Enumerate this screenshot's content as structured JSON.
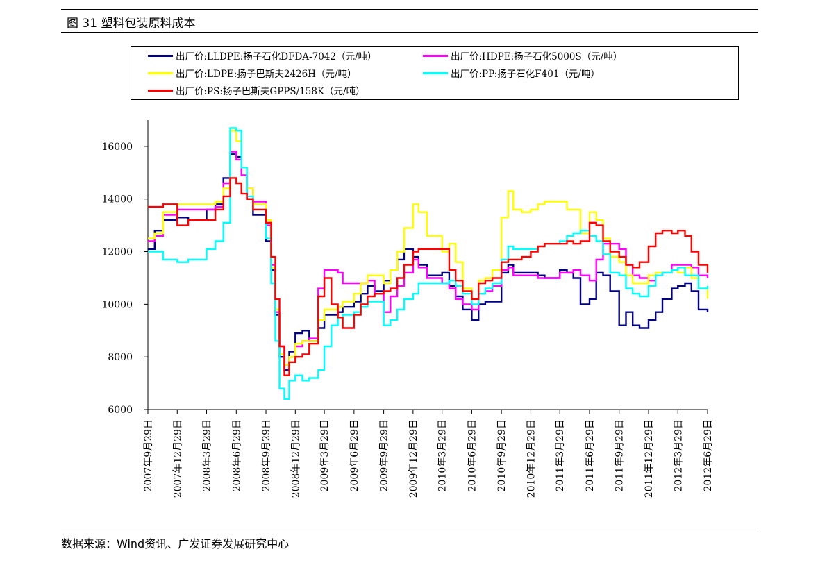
{
  "figure": {
    "title": "图 31 塑料包装原料成本",
    "source": "数据来源：Wind资讯、广发证券发展研究中心"
  },
  "chart_data": {
    "type": "line",
    "title": "",
    "xlabel": "",
    "ylabel": "",
    "ylim": [
      6000,
      17000
    ],
    "yticks": [
      "6000",
      "8000",
      "10000",
      "12000",
      "14000",
      "16000"
    ],
    "xticks": [
      "2007年9月29日",
      "2007年12月29日",
      "2008年3月29日",
      "2008年6月29日",
      "2008年9月29日",
      "2008年12月29日",
      "2009年3月29日",
      "2009年6月29日",
      "2009年9月29日",
      "2009年12月29日",
      "2010年3月29日",
      "2010年6月29日",
      "2010年9月29日",
      "2010年12月29日",
      "2011年3月29日",
      "2011年6月29日",
      "2011年9月29日",
      "2011年12月29日",
      "2012年3月29日",
      "2012年6月29日"
    ],
    "grid": false,
    "legend_position": "top",
    "series": [
      {
        "name": "出厂价:LLDPE:扬子石化DFDA-7042（元/吨）",
        "color": "#000080",
        "x": [
          "2007-09-29",
          "2007-10-20",
          "2007-11-15",
          "2007-12-29",
          "2008-02-01",
          "2008-03-29",
          "2008-04-25",
          "2008-05-20",
          "2008-06-10",
          "2008-06-29",
          "2008-07-15",
          "2008-08-01",
          "2008-08-20",
          "2008-09-29",
          "2008-10-15",
          "2008-10-28",
          "2008-11-10",
          "2008-11-25",
          "2008-12-10",
          "2008-12-29",
          "2009-01-20",
          "2009-02-10",
          "2009-03-10",
          "2009-03-29",
          "2009-04-20",
          "2009-05-10",
          "2009-05-25",
          "2009-06-29",
          "2009-07-20",
          "2009-08-10",
          "2009-09-01",
          "2009-09-29",
          "2009-10-20",
          "2009-11-10",
          "2009-12-01",
          "2009-12-29",
          "2010-01-15",
          "2010-02-10",
          "2010-03-29",
          "2010-04-20",
          "2010-05-10",
          "2010-06-01",
          "2010-06-29",
          "2010-07-20",
          "2010-08-10",
          "2010-09-01",
          "2010-09-29",
          "2010-10-20",
          "2010-11-05",
          "2010-12-01",
          "2010-12-29",
          "2011-01-20",
          "2011-02-10",
          "2011-03-29",
          "2011-04-20",
          "2011-05-10",
          "2011-06-01",
          "2011-06-29",
          "2011-07-20",
          "2011-08-10",
          "2011-09-01",
          "2011-09-29",
          "2011-10-20",
          "2011-11-10",
          "2011-12-01",
          "2011-12-29",
          "2012-01-20",
          "2012-02-10",
          "2012-03-10",
          "2012-03-29",
          "2012-04-20",
          "2012-05-10",
          "2012-06-01",
          "2012-06-29"
        ],
        "values": [
          12100,
          12800,
          13200,
          13300,
          13200,
          13600,
          13800,
          14800,
          15700,
          15600,
          14900,
          14000,
          13400,
          12400,
          11300,
          9600,
          8000,
          7500,
          8200,
          8900,
          9000,
          8600,
          9100,
          9600,
          9600,
          9700,
          9900,
          10100,
          10400,
          10700,
          10500,
          10900,
          11300,
          11700,
          12100,
          11800,
          11500,
          11100,
          11200,
          10700,
          10300,
          9800,
          9400,
          10000,
          10100,
          10100,
          11200,
          11500,
          11200,
          11200,
          11200,
          11100,
          11000,
          11300,
          11200,
          11000,
          10000,
          10200,
          11200,
          11100,
          10500,
          9200,
          9700,
          9200,
          9100,
          9400,
          9700,
          10200,
          10600,
          10700,
          10800,
          10500,
          9800,
          9700
        ]
      },
      {
        "name": "出厂价:HDPE:扬子石化5000S（元/吨）",
        "color": "#ff00ff",
        "x": [
          "2007-09-29",
          "2007-10-20",
          "2007-11-15",
          "2007-12-29",
          "2008-02-01",
          "2008-03-29",
          "2008-04-25",
          "2008-05-20",
          "2008-06-10",
          "2008-06-29",
          "2008-07-15",
          "2008-08-01",
          "2008-08-20",
          "2008-09-29",
          "2008-10-15",
          "2008-10-28",
          "2008-11-10",
          "2008-11-25",
          "2008-12-10",
          "2008-12-29",
          "2009-01-20",
          "2009-02-10",
          "2009-03-10",
          "2009-03-29",
          "2009-04-20",
          "2009-05-10",
          "2009-05-25",
          "2009-06-29",
          "2009-07-20",
          "2009-08-10",
          "2009-09-01",
          "2009-09-29",
          "2009-10-20",
          "2009-11-10",
          "2009-12-01",
          "2009-12-29",
          "2010-01-15",
          "2010-02-10",
          "2010-03-29",
          "2010-04-20",
          "2010-05-10",
          "2010-06-01",
          "2010-06-29",
          "2010-07-20",
          "2010-08-10",
          "2010-09-01",
          "2010-09-29",
          "2010-10-20",
          "2010-11-05",
          "2010-12-01",
          "2010-12-29",
          "2011-01-20",
          "2011-02-10",
          "2011-03-29",
          "2011-04-20",
          "2011-05-10",
          "2011-06-01",
          "2011-06-29",
          "2011-07-20",
          "2011-08-10",
          "2011-09-01",
          "2011-09-29",
          "2011-10-20",
          "2011-11-10",
          "2011-12-01",
          "2011-12-29",
          "2012-01-20",
          "2012-02-10",
          "2012-03-10",
          "2012-03-29",
          "2012-04-20",
          "2012-05-10",
          "2012-06-01",
          "2012-06-29"
        ],
        "values": [
          12400,
          12600,
          13400,
          13600,
          13600,
          13600,
          13700,
          14600,
          15800,
          15500,
          14900,
          14400,
          13900,
          13000,
          11500,
          9700,
          8400,
          7700,
          8000,
          8400,
          8600,
          8700,
          10600,
          11300,
          11300,
          11200,
          10800,
          10800,
          10800,
          10900,
          10400,
          9700,
          10300,
          10700,
          11200,
          11700,
          11400,
          11000,
          10800,
          10600,
          10200,
          10000,
          9800,
          10400,
          10500,
          10700,
          11300,
          11400,
          11100,
          11100,
          11100,
          11000,
          11000,
          11200,
          11200,
          11300,
          11100,
          10900,
          11700,
          12300,
          12300,
          12100,
          11500,
          11100,
          11000,
          10900,
          11100,
          11200,
          11500,
          11500,
          11500,
          11400,
          11100,
          11000
        ]
      },
      {
        "name": "出厂价:LDPE:扬子巴斯夫2426H（元/吨）",
        "color": "#ffff00",
        "x": [
          "2007-09-29",
          "2007-10-20",
          "2007-11-15",
          "2007-12-29",
          "2008-02-01",
          "2008-03-29",
          "2008-04-25",
          "2008-05-20",
          "2008-06-10",
          "2008-06-29",
          "2008-07-15",
          "2008-08-01",
          "2008-08-20",
          "2008-09-29",
          "2008-10-15",
          "2008-10-28",
          "2008-11-10",
          "2008-11-25",
          "2008-12-10",
          "2008-12-29",
          "2009-01-20",
          "2009-02-10",
          "2009-03-10",
          "2009-03-29",
          "2009-04-20",
          "2009-05-10",
          "2009-05-25",
          "2009-06-29",
          "2009-07-20",
          "2009-08-10",
          "2009-09-01",
          "2009-09-29",
          "2009-10-20",
          "2009-11-10",
          "2009-12-01",
          "2009-12-29",
          "2010-01-15",
          "2010-02-10",
          "2010-03-29",
          "2010-04-20",
          "2010-05-10",
          "2010-06-01",
          "2010-06-29",
          "2010-07-20",
          "2010-08-10",
          "2010-09-01",
          "2010-09-29",
          "2010-10-20",
          "2010-11-05",
          "2010-12-01",
          "2010-12-29",
          "2011-01-20",
          "2011-02-10",
          "2011-03-29",
          "2011-04-20",
          "2011-05-10",
          "2011-06-01",
          "2011-06-29",
          "2011-07-20",
          "2011-08-10",
          "2011-09-01",
          "2011-09-29",
          "2011-10-20",
          "2011-11-10",
          "2011-12-01",
          "2011-12-29",
          "2012-01-20",
          "2012-02-10",
          "2012-03-10",
          "2012-03-29",
          "2012-04-20",
          "2012-05-10",
          "2012-06-01",
          "2012-06-29"
        ],
        "values": [
          12500,
          12700,
          13500,
          13800,
          13800,
          13800,
          13900,
          14400,
          16600,
          16200,
          15200,
          14400,
          13800,
          13200,
          11400,
          9800,
          8100,
          7700,
          8000,
          8500,
          8600,
          8600,
          9400,
          9800,
          9800,
          9900,
          10100,
          10400,
          10800,
          11100,
          11100,
          10800,
          11300,
          12000,
          12900,
          13800,
          13500,
          12600,
          12000,
          12300,
          11600,
          10600,
          10200,
          10900,
          11000,
          11300,
          13300,
          14300,
          13600,
          13500,
          13600,
          13800,
          13900,
          13900,
          13600,
          13600,
          12700,
          13500,
          13200,
          12500,
          11800,
          11600,
          11100,
          10800,
          10800,
          11100,
          11200,
          11200,
          11300,
          11200,
          11400,
          11000,
          10600,
          10200
        ]
      },
      {
        "name": "出厂价:PP:扬子石化F401（元/吨）",
        "color": "#00ffff",
        "x": [
          "2007-09-29",
          "2007-10-20",
          "2007-11-15",
          "2007-12-29",
          "2008-02-01",
          "2008-03-29",
          "2008-04-25",
          "2008-05-20",
          "2008-06-10",
          "2008-06-29",
          "2008-07-15",
          "2008-08-01",
          "2008-08-20",
          "2008-09-29",
          "2008-10-15",
          "2008-10-28",
          "2008-11-10",
          "2008-11-25",
          "2008-12-10",
          "2008-12-29",
          "2009-01-20",
          "2009-02-10",
          "2009-03-10",
          "2009-03-29",
          "2009-04-20",
          "2009-05-10",
          "2009-05-25",
          "2009-06-29",
          "2009-07-20",
          "2009-08-10",
          "2009-09-01",
          "2009-09-29",
          "2009-10-20",
          "2009-11-10",
          "2009-12-01",
          "2009-12-29",
          "2010-01-15",
          "2010-02-10",
          "2010-03-29",
          "2010-04-20",
          "2010-05-10",
          "2010-06-01",
          "2010-06-29",
          "2010-07-20",
          "2010-08-10",
          "2010-09-01",
          "2010-09-29",
          "2010-10-20",
          "2010-11-05",
          "2010-12-01",
          "2010-12-29",
          "2011-01-20",
          "2011-02-10",
          "2011-03-29",
          "2011-04-20",
          "2011-05-10",
          "2011-06-01",
          "2011-06-29",
          "2011-07-20",
          "2011-08-10",
          "2011-09-01",
          "2011-09-29",
          "2011-10-20",
          "2011-11-10",
          "2011-12-01",
          "2011-12-29",
          "2012-01-20",
          "2012-02-10",
          "2012-03-10",
          "2012-03-29",
          "2012-04-20",
          "2012-05-10",
          "2012-06-01",
          "2012-06-29"
        ],
        "values": [
          12000,
          12000,
          11700,
          11600,
          11700,
          12100,
          12400,
          13100,
          16700,
          16600,
          15200,
          14100,
          13600,
          12500,
          10800,
          8600,
          6800,
          6400,
          7100,
          7300,
          7100,
          7200,
          7500,
          8400,
          9200,
          9500,
          9600,
          9700,
          9900,
          10100,
          10100,
          9200,
          9400,
          9800,
          10200,
          10400,
          10800,
          10800,
          10800,
          10900,
          10700,
          10400,
          10000,
          10400,
          10600,
          10800,
          11700,
          12200,
          12100,
          12100,
          12100,
          12200,
          12300,
          12400,
          12600,
          12700,
          12800,
          12600,
          12400,
          11900,
          11200,
          11100,
          10600,
          10400,
          10300,
          10700,
          11100,
          11200,
          11300,
          11400,
          11100,
          11100,
          10600,
          10700
        ]
      },
      {
        "name": "出厂价:PS:扬子巴斯夫GPPS/158K（元/吨）",
        "color": "#ff0000",
        "x": [
          "2007-09-29",
          "2007-10-20",
          "2007-11-15",
          "2007-12-29",
          "2008-02-01",
          "2008-03-29",
          "2008-04-25",
          "2008-05-20",
          "2008-06-10",
          "2008-06-29",
          "2008-07-15",
          "2008-08-01",
          "2008-08-20",
          "2008-09-29",
          "2008-10-15",
          "2008-10-28",
          "2008-11-10",
          "2008-11-25",
          "2008-12-10",
          "2008-12-29",
          "2009-01-20",
          "2009-02-10",
          "2009-03-10",
          "2009-03-29",
          "2009-04-20",
          "2009-05-10",
          "2009-05-25",
          "2009-06-29",
          "2009-07-20",
          "2009-08-10",
          "2009-09-01",
          "2009-09-29",
          "2009-10-20",
          "2009-11-10",
          "2009-12-01",
          "2009-12-29",
          "2010-01-15",
          "2010-02-10",
          "2010-03-29",
          "2010-04-20",
          "2010-05-10",
          "2010-06-01",
          "2010-06-29",
          "2010-07-20",
          "2010-08-10",
          "2010-09-01",
          "2010-09-29",
          "2010-10-20",
          "2010-11-05",
          "2010-12-01",
          "2010-12-29",
          "2011-01-20",
          "2011-02-10",
          "2011-03-29",
          "2011-04-20",
          "2011-05-10",
          "2011-06-01",
          "2011-06-29",
          "2011-07-20",
          "2011-08-10",
          "2011-09-01",
          "2011-09-29",
          "2011-10-20",
          "2011-11-10",
          "2011-12-01",
          "2011-12-29",
          "2012-01-20",
          "2012-02-10",
          "2012-03-10",
          "2012-03-29",
          "2012-04-20",
          "2012-05-10",
          "2012-06-01",
          "2012-06-29"
        ],
        "values": [
          13700,
          13700,
          13800,
          13000,
          13200,
          13200,
          13600,
          14100,
          14800,
          14600,
          14200,
          14000,
          13600,
          13100,
          11800,
          10200,
          8400,
          7300,
          7800,
          8000,
          8100,
          8500,
          10300,
          11000,
          10000,
          9500,
          9100,
          9600,
          10000,
          10300,
          10400,
          10500,
          10600,
          11000,
          11500,
          12000,
          12100,
          12100,
          12100,
          11300,
          10900,
          10500,
          10200,
          10800,
          10900,
          11000,
          11600,
          11700,
          11700,
          11800,
          12000,
          12200,
          12300,
          12300,
          12400,
          12300,
          12400,
          13100,
          13000,
          12400,
          12000,
          11800,
          11500,
          11400,
          11600,
          12200,
          12700,
          12800,
          12700,
          12800,
          12600,
          12000,
          11500,
          11200
        ]
      }
    ]
  }
}
